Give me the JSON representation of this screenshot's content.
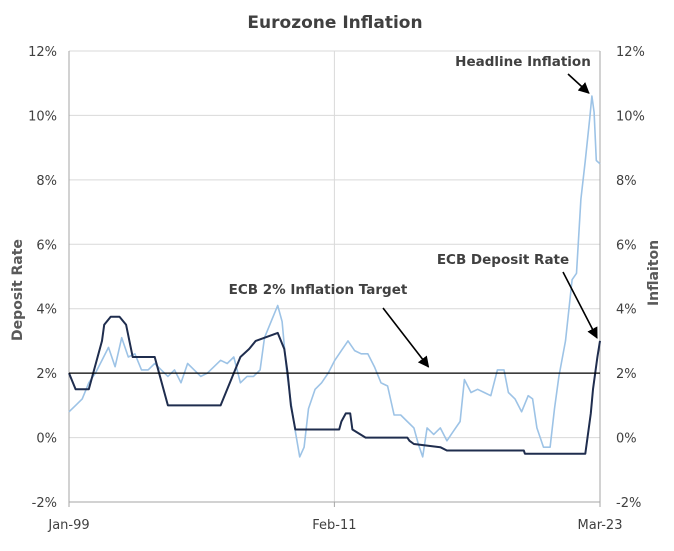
{
  "chart_data": {
    "type": "line",
    "title": "Eurozone Inflation",
    "ylabel_left": "Deposit  Rate",
    "ylabel_right": "Inflaiton",
    "ylim": [
      -2,
      12
    ],
    "y_ticks": [
      "-2%",
      "0%",
      "2%",
      "4%",
      "6%",
      "8%",
      "10%",
      "12%"
    ],
    "x_ticks": [
      {
        "label": "Jan-99",
        "x": 1999.0
      },
      {
        "label": "Feb-11",
        "x": 2011.08
      },
      {
        "label": "Mar-23",
        "x": 2023.17
      }
    ],
    "grid": true,
    "series": [
      {
        "name": "Headline Inflation",
        "color": "#9dc3e6",
        "points": [
          [
            1999.0,
            0.8
          ],
          [
            1999.3,
            1.0
          ],
          [
            1999.6,
            1.2
          ],
          [
            1999.9,
            1.7
          ],
          [
            2000.2,
            2.0
          ],
          [
            2000.5,
            2.4
          ],
          [
            2000.8,
            2.8
          ],
          [
            2001.1,
            2.2
          ],
          [
            2001.4,
            3.1
          ],
          [
            2001.7,
            2.5
          ],
          [
            2002.0,
            2.6
          ],
          [
            2002.3,
            2.1
          ],
          [
            2002.6,
            2.1
          ],
          [
            2002.9,
            2.3
          ],
          [
            2003.2,
            2.1
          ],
          [
            2003.5,
            1.9
          ],
          [
            2003.8,
            2.1
          ],
          [
            2004.1,
            1.7
          ],
          [
            2004.4,
            2.3
          ],
          [
            2004.7,
            2.1
          ],
          [
            2005.0,
            1.9
          ],
          [
            2005.3,
            2.0
          ],
          [
            2005.6,
            2.2
          ],
          [
            2005.9,
            2.4
          ],
          [
            2006.2,
            2.3
          ],
          [
            2006.5,
            2.5
          ],
          [
            2006.8,
            1.7
          ],
          [
            2007.1,
            1.9
          ],
          [
            2007.4,
            1.9
          ],
          [
            2007.7,
            2.1
          ],
          [
            2007.9,
            3.1
          ],
          [
            2008.2,
            3.6
          ],
          [
            2008.5,
            4.1
          ],
          [
            2008.7,
            3.6
          ],
          [
            2008.9,
            2.1
          ],
          [
            2009.1,
            1.1
          ],
          [
            2009.3,
            0.2
          ],
          [
            2009.5,
            -0.6
          ],
          [
            2009.7,
            -0.3
          ],
          [
            2009.9,
            0.9
          ],
          [
            2010.2,
            1.5
          ],
          [
            2010.5,
            1.7
          ],
          [
            2010.8,
            2.0
          ],
          [
            2011.1,
            2.4
          ],
          [
            2011.4,
            2.7
          ],
          [
            2011.7,
            3.0
          ],
          [
            2012.0,
            2.7
          ],
          [
            2012.3,
            2.6
          ],
          [
            2012.6,
            2.6
          ],
          [
            2012.9,
            2.2
          ],
          [
            2013.2,
            1.7
          ],
          [
            2013.5,
            1.6
          ],
          [
            2013.8,
            0.7
          ],
          [
            2014.1,
            0.7
          ],
          [
            2014.4,
            0.5
          ],
          [
            2014.7,
            0.3
          ],
          [
            2014.9,
            -0.2
          ],
          [
            2015.1,
            -0.6
          ],
          [
            2015.3,
            0.3
          ],
          [
            2015.6,
            0.1
          ],
          [
            2015.9,
            0.3
          ],
          [
            2016.2,
            -0.1
          ],
          [
            2016.5,
            0.2
          ],
          [
            2016.8,
            0.5
          ],
          [
            2017.0,
            1.8
          ],
          [
            2017.3,
            1.4
          ],
          [
            2017.6,
            1.5
          ],
          [
            2017.9,
            1.4
          ],
          [
            2018.2,
            1.3
          ],
          [
            2018.5,
            2.1
          ],
          [
            2018.8,
            2.1
          ],
          [
            2019.0,
            1.4
          ],
          [
            2019.3,
            1.2
          ],
          [
            2019.6,
            0.8
          ],
          [
            2019.9,
            1.3
          ],
          [
            2020.1,
            1.2
          ],
          [
            2020.3,
            0.3
          ],
          [
            2020.6,
            -0.3
          ],
          [
            2020.9,
            -0.3
          ],
          [
            2021.1,
            0.9
          ],
          [
            2021.3,
            1.9
          ],
          [
            2021.6,
            3.0
          ],
          [
            2021.9,
            4.9
          ],
          [
            2022.1,
            5.1
          ],
          [
            2022.3,
            7.4
          ],
          [
            2022.5,
            8.6
          ],
          [
            2022.7,
            9.9
          ],
          [
            2022.8,
            10.6
          ],
          [
            2022.9,
            10.1
          ],
          [
            2023.0,
            8.6
          ],
          [
            2023.17,
            8.5
          ]
        ]
      },
      {
        "name": "ECB Deposit Rate",
        "color": "#1f2d4e",
        "points": [
          [
            1999.0,
            2.0
          ],
          [
            1999.3,
            1.5
          ],
          [
            1999.9,
            1.5
          ],
          [
            2000.1,
            2.0
          ],
          [
            2000.3,
            2.5
          ],
          [
            2000.5,
            3.0
          ],
          [
            2000.6,
            3.5
          ],
          [
            2000.9,
            3.75
          ],
          [
            2001.3,
            3.75
          ],
          [
            2001.6,
            3.5
          ],
          [
            2001.75,
            3.0
          ],
          [
            2001.9,
            2.5
          ],
          [
            2002.9,
            2.5
          ],
          [
            2003.2,
            1.75
          ],
          [
            2003.5,
            1.0
          ],
          [
            2005.9,
            1.0
          ],
          [
            2006.2,
            1.5
          ],
          [
            2006.5,
            2.0
          ],
          [
            2006.8,
            2.5
          ],
          [
            2007.2,
            2.75
          ],
          [
            2007.5,
            3.0
          ],
          [
            2008.5,
            3.25
          ],
          [
            2008.8,
            2.75
          ],
          [
            2008.95,
            2.0
          ],
          [
            2009.1,
            1.0
          ],
          [
            2009.3,
            0.25
          ],
          [
            2011.3,
            0.25
          ],
          [
            2011.4,
            0.5
          ],
          [
            2011.6,
            0.75
          ],
          [
            2011.8,
            0.75
          ],
          [
            2011.9,
            0.25
          ],
          [
            2012.5,
            0.0
          ],
          [
            2014.4,
            0.0
          ],
          [
            2014.5,
            -0.1
          ],
          [
            2014.7,
            -0.2
          ],
          [
            2015.9,
            -0.3
          ],
          [
            2016.2,
            -0.4
          ],
          [
            2019.7,
            -0.4
          ],
          [
            2019.75,
            -0.5
          ],
          [
            2022.5,
            -0.5
          ],
          [
            2022.6,
            0.0
          ],
          [
            2022.75,
            0.75
          ],
          [
            2022.85,
            1.5
          ],
          [
            2022.95,
            2.0
          ],
          [
            2023.05,
            2.5
          ],
          [
            2023.17,
            3.0
          ]
        ]
      },
      {
        "name": "ECB 2% Inflation Target",
        "color": "#000000",
        "points": [
          [
            1999.0,
            2.0
          ],
          [
            2023.17,
            2.0
          ]
        ]
      }
    ],
    "annotations": [
      {
        "text": "Headline Inflation",
        "target": [
          2022.8,
          10.6
        ]
      },
      {
        "text": "ECB Deposit Rate",
        "target": [
          2023.17,
          3.0
        ]
      },
      {
        "text": "ECB 2% Inflation Target",
        "target": [
          2015.5,
          2.1
        ]
      }
    ]
  }
}
